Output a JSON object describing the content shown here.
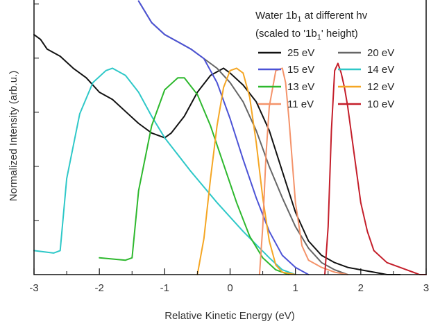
{
  "chart_data": {
    "type": "line",
    "title_lines": [
      "Water 1b",
      "1",
      " at different hv",
      "(scaled to '1b",
      "1",
      "' height)"
    ],
    "xlabel": "Relative Kinetic Energy (eV)",
    "ylabel": "Normalized Intensity (arb.u.)",
    "xlim": [
      -3,
      3
    ],
    "ylim": [
      0,
      1.15
    ],
    "xticks": [
      -3,
      -2,
      -1,
      0,
      1,
      2,
      3
    ],
    "xtick_labels": [
      "-3",
      "-2",
      "-1",
      "0",
      "1",
      "2",
      "3"
    ],
    "grid": false,
    "legend_position": "top-right",
    "series": [
      {
        "name": "25 eV",
        "color": "#111111",
        "x": [
          -3.0,
          -2.9,
          -2.8,
          -2.6,
          -2.4,
          -2.2,
          -2.0,
          -1.8,
          -1.6,
          -1.4,
          -1.2,
          -1.0,
          -0.9,
          -0.7,
          -0.5,
          -0.3,
          -0.1,
          0.0,
          0.2,
          0.4,
          0.6,
          0.8,
          1.0,
          1.2,
          1.4,
          1.6,
          1.8,
          2.0,
          2.2,
          2.4,
          2.6
        ],
        "y": [
          1.0,
          0.98,
          0.94,
          0.91,
          0.86,
          0.82,
          0.76,
          0.73,
          0.68,
          0.63,
          0.59,
          0.57,
          0.59,
          0.66,
          0.76,
          0.83,
          0.86,
          0.84,
          0.79,
          0.72,
          0.6,
          0.43,
          0.26,
          0.14,
          0.08,
          0.05,
          0.03,
          0.02,
          0.01,
          0.0,
          0.0
        ]
      },
      {
        "name": "20 eV",
        "color": "#666666",
        "x": [
          -1.4,
          -1.2,
          -1.0,
          -0.8,
          -0.6,
          -0.4,
          -0.2,
          0.0,
          0.2,
          0.4,
          0.6,
          0.8,
          1.0,
          1.2,
          1.4,
          1.6,
          1.8
        ],
        "y": [
          1.14,
          1.05,
          1.0,
          0.97,
          0.94,
          0.9,
          0.86,
          0.8,
          0.72,
          0.6,
          0.45,
          0.32,
          0.2,
          0.11,
          0.05,
          0.02,
          0.0
        ]
      },
      {
        "name": "15 eV",
        "color": "#4b52d6",
        "x": [
          -1.4,
          -1.2,
          -1.0,
          -0.8,
          -0.6,
          -0.4,
          -0.2,
          0.0,
          0.2,
          0.4,
          0.6,
          0.8,
          1.0,
          1.2
        ],
        "y": [
          1.14,
          1.05,
          1.0,
          0.97,
          0.94,
          0.9,
          0.8,
          0.65,
          0.48,
          0.32,
          0.18,
          0.08,
          0.03,
          0.0
        ]
      },
      {
        "name": "14 eV",
        "color": "#2ec8c8",
        "x": [
          -3.0,
          -2.7,
          -2.6,
          -2.5,
          -2.3,
          -2.1,
          -1.9,
          -1.8,
          -1.6,
          -1.4,
          -1.2,
          -1.0,
          -0.6,
          -0.2,
          0.2,
          0.6,
          0.8,
          1.0
        ],
        "y": [
          0.1,
          0.09,
          0.1,
          0.4,
          0.67,
          0.8,
          0.85,
          0.86,
          0.83,
          0.76,
          0.66,
          0.57,
          0.43,
          0.3,
          0.18,
          0.07,
          0.02,
          0.0
        ]
      },
      {
        "name": "13 eV",
        "color": "#2db82d",
        "x": [
          -2.0,
          -1.6,
          -1.5,
          -1.4,
          -1.2,
          -1.0,
          -0.8,
          -0.7,
          -0.5,
          -0.3,
          -0.1,
          0.1,
          0.3,
          0.5,
          0.7,
          0.9
        ],
        "y": [
          0.07,
          0.06,
          0.07,
          0.35,
          0.62,
          0.77,
          0.82,
          0.82,
          0.75,
          0.62,
          0.46,
          0.3,
          0.16,
          0.07,
          0.02,
          0.0
        ]
      },
      {
        "name": "12 eV",
        "color": "#f5a623",
        "x": [
          -0.5,
          -0.4,
          -0.3,
          -0.2,
          -0.1,
          0.0,
          0.1,
          0.2,
          0.3,
          0.4,
          0.5,
          0.6,
          0.7,
          0.8,
          1.0
        ],
        "y": [
          0.0,
          0.15,
          0.4,
          0.62,
          0.78,
          0.85,
          0.86,
          0.84,
          0.74,
          0.55,
          0.32,
          0.14,
          0.04,
          0.01,
          0.0
        ]
      },
      {
        "name": "11 eV",
        "color": "#f4936a",
        "x": [
          0.45,
          0.5,
          0.55,
          0.6,
          0.7,
          0.8,
          0.85,
          0.9,
          1.0,
          1.1,
          1.2,
          1.4,
          1.6,
          1.8
        ],
        "y": [
          0.0,
          0.2,
          0.5,
          0.7,
          0.85,
          0.86,
          0.8,
          0.65,
          0.3,
          0.12,
          0.06,
          0.03,
          0.01,
          0.0
        ]
      },
      {
        "name": "10 eV",
        "color": "#c41e2a",
        "x": [
          1.45,
          1.5,
          1.55,
          1.6,
          1.65,
          1.7,
          1.75,
          1.8,
          1.9,
          2.0,
          2.1,
          2.2,
          2.4,
          2.6,
          2.7,
          2.8,
          2.9,
          3.0
        ],
        "y": [
          0.0,
          0.2,
          0.6,
          0.85,
          0.88,
          0.84,
          0.78,
          0.7,
          0.5,
          0.3,
          0.18,
          0.1,
          0.05,
          0.03,
          0.02,
          0.01,
          0.0,
          0.0
        ]
      }
    ]
  }
}
